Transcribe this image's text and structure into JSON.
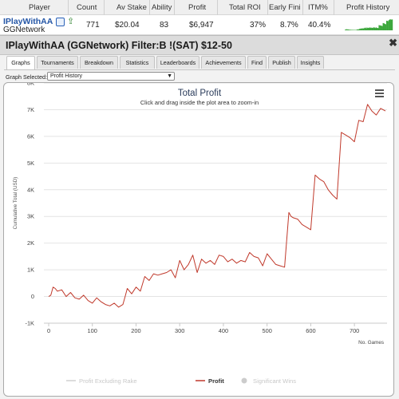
{
  "summary": {
    "headers": [
      "Player",
      "Count",
      "Av Stake",
      "Ability",
      "Profit",
      "Total ROI",
      "Early Fini",
      "ITM%",
      "Profit History"
    ],
    "player": "IPlayWithAA",
    "network": "GGNetwork",
    "count": "771",
    "av_stake": "$20.04",
    "ability": "83",
    "profit": "$6,947",
    "total_roi": "37%",
    "early_fini": "8.7%",
    "itm": "40.4%",
    "history_color": "#3aa63a"
  },
  "window": {
    "title": "IPlayWithAA (GGNetwork) Filter:B !(SAT) $12-50",
    "close_symbol": "✖"
  },
  "tabs": [
    {
      "label": "Graphs",
      "active": true
    },
    {
      "label": "Tournaments",
      "active": false
    },
    {
      "label": "Breakdown",
      "active": false
    },
    {
      "label": "Statistics",
      "active": false
    },
    {
      "label": "Leaderboards",
      "active": false
    },
    {
      "label": "Achievements",
      "active": false
    },
    {
      "label": "Find",
      "active": false
    },
    {
      "label": "Publish",
      "active": false
    },
    {
      "label": "Insights",
      "active": false
    }
  ],
  "graph_selector": {
    "label": "Graph Selected:",
    "value": "Profit History"
  },
  "chart_data": {
    "type": "line",
    "title": "Total Profit",
    "subtitle": "Click and drag inside the plot area to zoom-in",
    "ylabel": "Cumulative Total (USD)",
    "xlabel": "No. Games",
    "ylim": [
      -1000,
      8000
    ],
    "xlim": [
      0,
      771
    ],
    "y_ticks": [
      "8K",
      "7K",
      "6K",
      "5K",
      "4K",
      "3K",
      "2K",
      "1K",
      "0",
      "-1K"
    ],
    "y_tick_values": [
      8000,
      7000,
      6000,
      5000,
      4000,
      3000,
      2000,
      1000,
      0,
      -1000
    ],
    "x_ticks": [
      "0",
      "100",
      "200",
      "300",
      "400",
      "500",
      "600",
      "700"
    ],
    "x_tick_values": [
      0,
      100,
      200,
      300,
      400,
      500,
      600,
      700
    ],
    "grid": true,
    "line_color": "#c0392b",
    "series": [
      {
        "name": "Profit",
        "x": [
          0,
          5,
          10,
          15,
          20,
          30,
          40,
          50,
          60,
          70,
          80,
          90,
          100,
          110,
          120,
          130,
          140,
          150,
          160,
          170,
          175,
          180,
          190,
          200,
          210,
          220,
          230,
          240,
          250,
          260,
          270,
          280,
          290,
          300,
          310,
          320,
          330,
          340,
          350,
          360,
          370,
          380,
          390,
          400,
          410,
          420,
          430,
          440,
          450,
          460,
          470,
          480,
          490,
          500,
          510,
          520,
          530,
          540,
          550,
          555,
          560,
          570,
          580,
          590,
          600,
          610,
          620,
          630,
          640,
          650,
          660,
          670,
          680,
          690,
          700,
          710,
          720,
          730,
          740,
          750,
          760,
          771
        ],
        "y": [
          0,
          50,
          350,
          300,
          200,
          250,
          0,
          150,
          -50,
          -100,
          50,
          -150,
          -250,
          -50,
          -200,
          -300,
          -350,
          -250,
          -400,
          -300,
          0,
          300,
          100,
          350,
          200,
          750,
          600,
          850,
          800,
          850,
          900,
          1000,
          700,
          1350,
          1000,
          1200,
          1550,
          900,
          1400,
          1250,
          1350,
          1200,
          1550,
          1500,
          1300,
          1400,
          1250,
          1350,
          1300,
          1650,
          1500,
          1450,
          1150,
          1600,
          1400,
          1200,
          1150,
          1100,
          3150,
          3000,
          2950,
          2900,
          2700,
          2600,
          2500,
          4550,
          4400,
          4300,
          4000,
          3800,
          3650,
          6150,
          6050,
          5950,
          5800,
          6600,
          6550,
          7200,
          6950,
          6800,
          7050,
          6950
        ]
      }
    ],
    "legend": {
      "placement": "bottom",
      "items": [
        {
          "label": "Profit Excluding Rake",
          "color": "#cfcfcf",
          "active": false,
          "symbol": "line"
        },
        {
          "label": "Profit",
          "color": "#c0392b",
          "active": true,
          "symbol": "line"
        },
        {
          "label": "Significant Wins",
          "color": "#cfcfcf",
          "active": false,
          "symbol": "dot"
        }
      ]
    }
  }
}
